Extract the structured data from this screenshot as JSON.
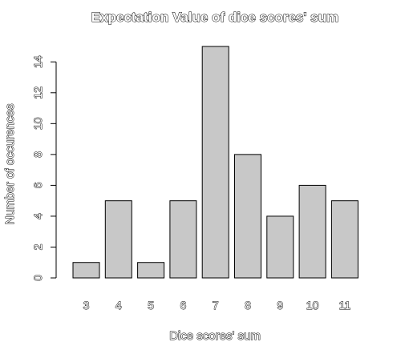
{
  "chart_data": {
    "type": "bar",
    "title": "Expectation Value of dice scores' sum",
    "xlabel": "Dice scores' sum",
    "ylabel": "Number of occurences",
    "categories": [
      "3",
      "4",
      "5",
      "6",
      "7",
      "8",
      "9",
      "10",
      "11"
    ],
    "values": [
      1,
      5,
      1,
      5,
      15,
      8,
      4,
      6,
      5
    ],
    "ylim": [
      0,
      15
    ],
    "yticks": [
      "0",
      "2",
      "4",
      "6",
      "8",
      "10",
      "12",
      "14"
    ],
    "grid": false,
    "colors": {
      "bar_fill": "#c8c8c8",
      "bar_stroke": "#000000"
    }
  }
}
